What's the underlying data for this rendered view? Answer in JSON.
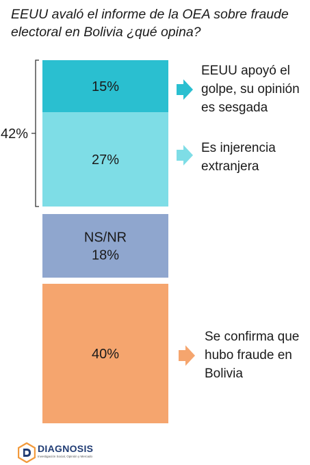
{
  "title": "EEUU avaló el informe de la OEA sobre fraude electoral en Bolivia ¿qué opina?",
  "chart_data": {
    "type": "bar",
    "subtype": "stacked-single-column",
    "segments": [
      {
        "label": "15%",
        "value": 15,
        "color": "#2abfd0"
      },
      {
        "label": "27%",
        "value": 27,
        "color": "#7edde6"
      },
      {
        "label": "NS/NR",
        "label2": "18%",
        "value": 18,
        "color": "#8fa6ce"
      },
      {
        "label": "40%",
        "value": 40,
        "color": "#f5a56e"
      }
    ],
    "group": {
      "label": "42%",
      "value": 42,
      "segments": [
        0,
        1
      ]
    },
    "callouts": [
      {
        "segment": 0,
        "text": "EEUU apoyó el golpe, su opinión es sesgada",
        "lines": [
          "EEUU apoyó el",
          "golpe, su opinión",
          "es sesgada"
        ],
        "color": "#2abfd0"
      },
      {
        "segment": 1,
        "text": "Es injerencia extranjera",
        "lines": [
          "Es injerencia",
          "extranjera"
        ],
        "color": "#7edde6"
      },
      {
        "segment": 3,
        "text": "Se confirma que hubo fraude en Bolivia",
        "lines": [
          "Se confirma que",
          "hubo fraude en",
          "Bolivia"
        ],
        "color": "#f5a56e"
      }
    ]
  },
  "logo": {
    "name": "DIAGNOSIS",
    "tagline": "Investigación Social, Opinión y Mercado",
    "icon": "diagnosis-logo-icon"
  }
}
